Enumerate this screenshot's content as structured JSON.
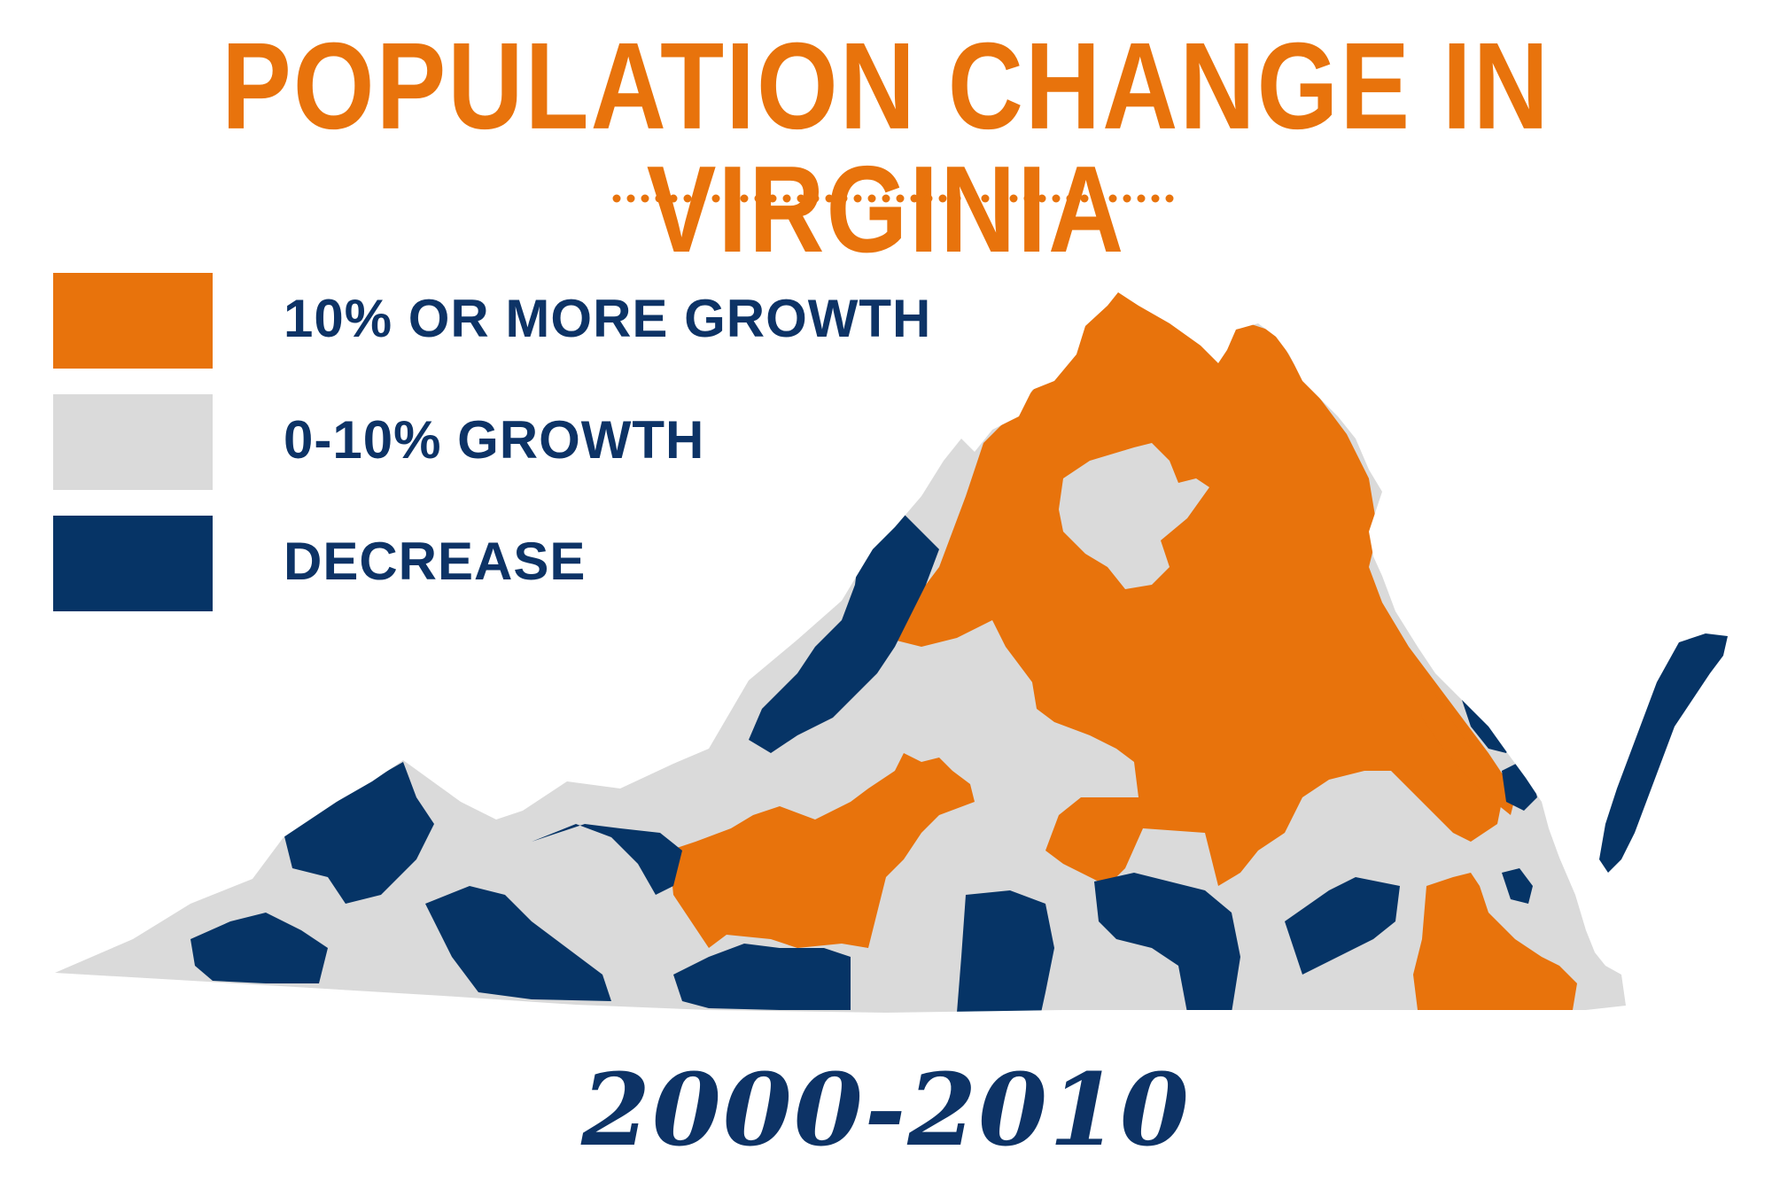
{
  "title": "POPULATION CHANGE IN VIRGINIA",
  "period": "2000-2010",
  "colors": {
    "title": "#E8730C",
    "text": "#0D3366",
    "divider": "#E8730C",
    "high_growth": "#E8730C",
    "low_growth": "#DADADA",
    "decrease": "#063466",
    "background": "#FFFFFF"
  },
  "legend": {
    "items": [
      {
        "label": "10% OR MORE GROWTH",
        "category": "high_growth",
        "color": "#E8730C"
      },
      {
        "label": "0-10% GROWTH",
        "category": "low_growth",
        "color": "#DADADA"
      },
      {
        "label": "DECREASE",
        "category": "decrease",
        "color": "#063466"
      }
    ]
  }
}
